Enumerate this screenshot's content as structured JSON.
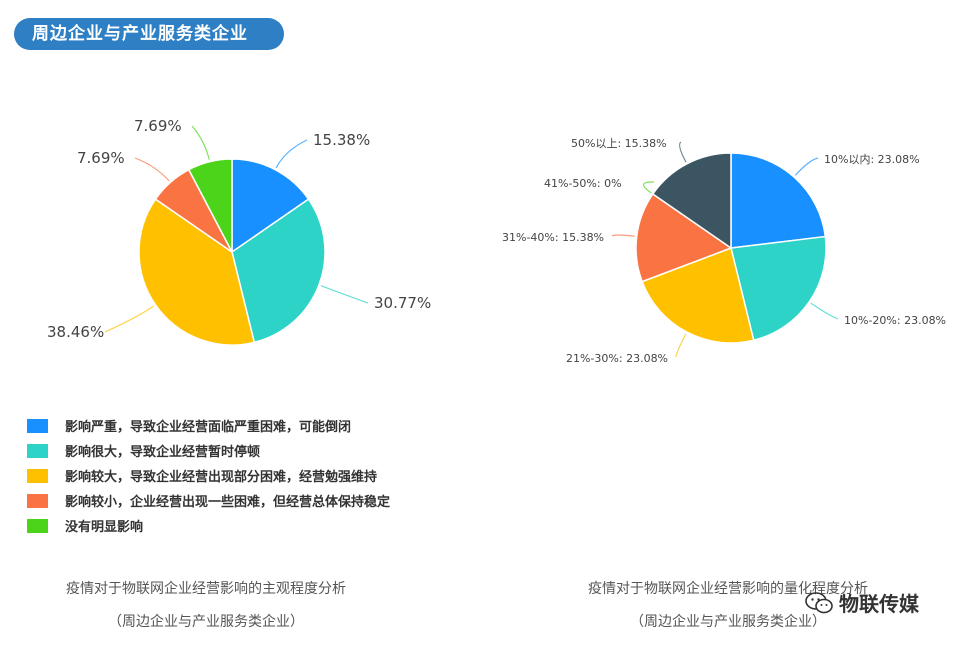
{
  "header": {
    "title": "周边企业与产业服务类企业"
  },
  "chart_data": [
    {
      "type": "pie",
      "title": "疫情对于物联网企业经营影响的主观程度分析",
      "subtitle": "（周边企业与产业服务类企业）",
      "slices": [
        {
          "value": 15.38,
          "label": "15.38%",
          "color": "#1890ff"
        },
        {
          "value": 30.77,
          "label": "30.77%",
          "color": "#2ed3c8"
        },
        {
          "value": 38.46,
          "label": "38.46%",
          "color": "#ffc000"
        },
        {
          "value": 7.69,
          "label": "7.69%",
          "color": "#fa7343"
        },
        {
          "value": 7.69,
          "label": "7.69%",
          "color": "#4cd41a"
        }
      ]
    },
    {
      "type": "pie",
      "title": "疫情对于物联网企业经营影响的量化程度分析",
      "subtitle": "（周边企业与产业服务类企业）",
      "slices": [
        {
          "value": 23.08,
          "label": "10%以内: 23.08%",
          "color": "#1890ff"
        },
        {
          "value": 23.08,
          "label": "10%-20%: 23.08%",
          "color": "#2ed3c8"
        },
        {
          "value": 23.08,
          "label": "21%-30%: 23.08%",
          "color": "#ffc000"
        },
        {
          "value": 15.38,
          "label": "31%-40%: 15.38%",
          "color": "#fa7343"
        },
        {
          "value": 0,
          "label": "41%-50%: 0%",
          "color": "#4cd41a"
        },
        {
          "value": 15.38,
          "label": "50%以上: 15.38%",
          "color": "#3b5563"
        }
      ]
    }
  ],
  "legend": [
    {
      "label": "影响严重，导致企业经营面临严重困难，可能倒闭",
      "color": "#1890ff"
    },
    {
      "label": "影响很大，导致企业经营暂时停顿",
      "color": "#2ed3c8"
    },
    {
      "label": "影响较大，导致企业经营出现部分困难，经营勉强维持",
      "color": "#ffc000"
    },
    {
      "label": "影响较小，企业经营出现一些困难，但经营总体保持稳定",
      "color": "#fa7343"
    },
    {
      "label": "没有明显影响",
      "color": "#4cd41a"
    }
  ],
  "watermark": {
    "text": "物联传媒"
  }
}
